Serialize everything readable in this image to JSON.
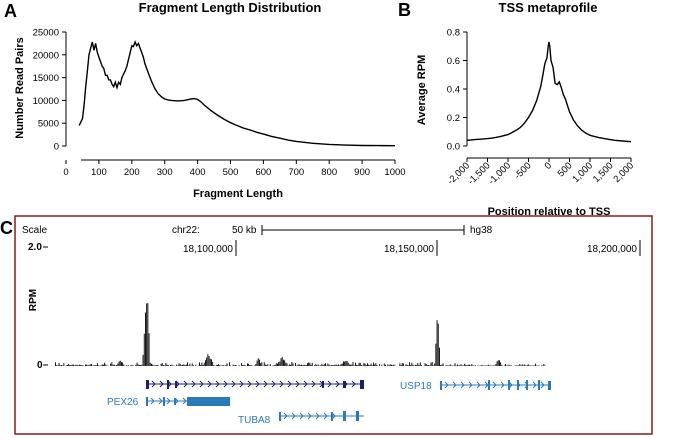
{
  "panel_labels": {
    "a": "A",
    "b": "B",
    "c": "C"
  },
  "colors": {
    "line": "#000000",
    "frame": "#8b1a1a",
    "gene": "#2a7ab8",
    "gene_dark": "#1b1f6e",
    "axis": "#000000"
  },
  "chart_data": [
    {
      "type": "line",
      "title": "Fragment Length Distribution",
      "xlabel": "Fragment Length",
      "ylabel": "Number Read Pairs",
      "xlim": [
        0,
        1000
      ],
      "ylim": [
        0,
        25000
      ],
      "xticks": [
        "0",
        "100",
        "200",
        "300",
        "400",
        "500",
        "600",
        "700",
        "800",
        "900",
        "1000"
      ],
      "yticks": [
        "0",
        "5000",
        "10000",
        "15000",
        "20000",
        "25000"
      ],
      "x": [
        40,
        50,
        55,
        60,
        65,
        70,
        75,
        80,
        85,
        90,
        95,
        100,
        105,
        110,
        115,
        120,
        125,
        130,
        135,
        140,
        145,
        150,
        155,
        160,
        165,
        170,
        175,
        180,
        185,
        190,
        195,
        200,
        205,
        210,
        215,
        220,
        225,
        230,
        235,
        240,
        250,
        260,
        270,
        280,
        290,
        300,
        310,
        320,
        340,
        360,
        380,
        390,
        400,
        410,
        420,
        440,
        460,
        480,
        500,
        520,
        540,
        560,
        580,
        600,
        625,
        650,
        675,
        700,
        750,
        800,
        850,
        900,
        950,
        1000
      ],
      "y": [
        4500,
        6000,
        9000,
        13000,
        16500,
        20000,
        21500,
        22800,
        21000,
        22500,
        20500,
        19500,
        18500,
        17500,
        17000,
        15500,
        15500,
        14500,
        14500,
        13500,
        13000,
        14000,
        12800,
        14000,
        13500,
        15000,
        15800,
        16500,
        17500,
        19000,
        20500,
        22000,
        21800,
        22800,
        22000,
        22500,
        21500,
        20500,
        19500,
        18000,
        16000,
        14200,
        12600,
        11500,
        10800,
        10300,
        10100,
        10000,
        9900,
        10000,
        10300,
        10400,
        10200,
        9700,
        9000,
        7800,
        6800,
        5900,
        5100,
        4500,
        3900,
        3500,
        3000,
        2600,
        2100,
        1700,
        1300,
        1000,
        600,
        350,
        200,
        120,
        80,
        60
      ]
    },
    {
      "type": "line",
      "title": "TSS metaprofile",
      "xlabel": "Position relative to TSS",
      "ylabel": "Average RPM",
      "xlim": [
        -2000,
        2000
      ],
      "ylim": [
        0,
        0.8
      ],
      "xticks": [
        "-2,000",
        "-1,500",
        "-1,000",
        "-500",
        "0",
        "500",
        "1,000",
        "1,500",
        "2,000"
      ],
      "yticks": [
        "0.0",
        "0.2",
        "0.4",
        "0.6",
        "0.8"
      ],
      "x": [
        -2000,
        -1800,
        -1600,
        -1400,
        -1200,
        -1000,
        -900,
        -800,
        -700,
        -600,
        -500,
        -400,
        -300,
        -200,
        -150,
        -100,
        -50,
        -20,
        0,
        20,
        50,
        100,
        150,
        200,
        250,
        300,
        350,
        400,
        500,
        600,
        700,
        800,
        900,
        1000,
        1200,
        1400,
        1600,
        1800,
        2000
      ],
      "y": [
        0.04,
        0.045,
        0.05,
        0.055,
        0.065,
        0.08,
        0.095,
        0.11,
        0.13,
        0.16,
        0.2,
        0.25,
        0.32,
        0.42,
        0.5,
        0.58,
        0.62,
        0.7,
        0.73,
        0.7,
        0.6,
        0.55,
        0.44,
        0.43,
        0.45,
        0.41,
        0.36,
        0.33,
        0.24,
        0.18,
        0.14,
        0.11,
        0.09,
        0.075,
        0.06,
        0.05,
        0.04,
        0.035,
        0.03
      ]
    }
  ],
  "browser": {
    "scale_label": "Scale",
    "chr_label": "chr22:",
    "scale_bar": "50 kb",
    "assembly": "hg38",
    "ymax_label": "2.0",
    "ymin_label": "0",
    "track_label": "RPM",
    "positions": [
      "18,100,000",
      "18,150,000",
      "18,200,000"
    ],
    "genes": [
      "PEX26",
      "TUBA8",
      "USP18"
    ]
  }
}
